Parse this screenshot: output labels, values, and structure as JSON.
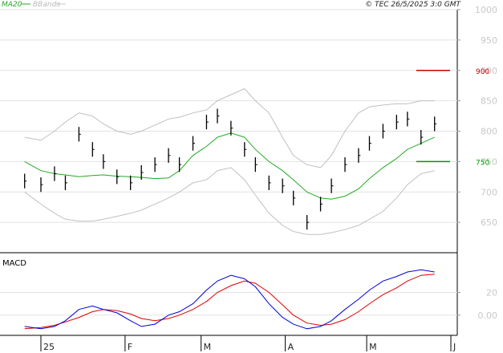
{
  "header": {
    "legend": [
      {
        "label": "MA20",
        "color": "#22aa22"
      },
      {
        "label": "BBands",
        "color": "#c0c0c0"
      }
    ],
    "copyright": "© TEC 26/5/2025 3:0 GMT"
  },
  "chart_data": [
    {
      "type": "line",
      "title": "",
      "ylim": [
        600,
        1000
      ],
      "yticks": [
        650,
        700,
        750,
        800,
        850,
        900,
        950,
        1000
      ],
      "ytick_labels": [
        "650",
        "700",
        "750",
        "800",
        "850",
        "900",
        "950",
        "1000"
      ],
      "grid": true,
      "x": [
        "2024-12-26",
        "2025-01-01",
        "2025-01-06",
        "2025-01-10",
        "2025-01-15",
        "2025-01-20",
        "2025-01-24",
        "2025-01-29",
        "2025-02-03",
        "2025-02-07",
        "2025-02-12",
        "2025-02-17",
        "2025-02-21",
        "2025-02-26",
        "2025-03-03",
        "2025-03-07",
        "2025-03-12",
        "2025-03-17",
        "2025-03-21",
        "2025-03-26",
        "2025-03-31",
        "2025-04-04",
        "2025-04-09",
        "2025-04-14",
        "2025-04-18",
        "2025-04-23",
        "2025-04-28",
        "2025-05-02",
        "2025-05-07",
        "2025-05-12",
        "2025-05-16",
        "2025-05-21",
        "2025-05-26"
      ],
      "series": [
        {
          "name": "Price",
          "color": "#000000",
          "values": [
            718,
            712,
            730,
            715,
            795,
            770,
            750,
            725,
            715,
            732,
            745,
            760,
            745,
            780,
            815,
            825,
            805,
            770,
            745,
            715,
            710,
            690,
            650,
            680,
            710,
            745,
            760,
            780,
            800,
            815,
            820,
            790,
            812
          ]
        },
        {
          "name": "MA20",
          "color": "#22aa22",
          "values": [
            750,
            735,
            730,
            728,
            725,
            727,
            728,
            726,
            725,
            724,
            722,
            723,
            735,
            760,
            775,
            790,
            797,
            790,
            770,
            750,
            735,
            720,
            700,
            690,
            688,
            693,
            705,
            722,
            740,
            755,
            770,
            780,
            790
          ]
        },
        {
          "name": "BBands upper",
          "color": "#c0c0c0",
          "values": [
            790,
            785,
            800,
            815,
            830,
            825,
            812,
            800,
            795,
            800,
            810,
            820,
            823,
            830,
            835,
            850,
            860,
            870,
            850,
            830,
            790,
            760,
            745,
            740,
            760,
            800,
            830,
            840,
            843,
            845,
            845,
            850,
            850
          ]
        },
        {
          "name": "BBands lower",
          "color": "#c0c0c0",
          "values": [
            700,
            680,
            665,
            655,
            652,
            652,
            655,
            660,
            665,
            670,
            680,
            690,
            700,
            715,
            720,
            735,
            740,
            720,
            695,
            665,
            645,
            635,
            630,
            630,
            633,
            638,
            645,
            655,
            668,
            690,
            712,
            730,
            735
          ]
        }
      ],
      "levels": [
        {
          "value": 900,
          "label": "900",
          "color": "#cc0000"
        },
        {
          "value": 750,
          "label": "750",
          "color": "#009900"
        }
      ]
    },
    {
      "type": "line",
      "title": "MACD",
      "ylim": [
        -15,
        50
      ],
      "yticks": [
        0,
        20
      ],
      "ytick_labels": [
        "0.00",
        "20"
      ],
      "grid": true,
      "x": [
        "2024-12-26",
        "2025-01-01",
        "2025-01-06",
        "2025-01-10",
        "2025-01-15",
        "2025-01-20",
        "2025-01-24",
        "2025-01-29",
        "2025-02-03",
        "2025-02-07",
        "2025-02-12",
        "2025-02-17",
        "2025-02-21",
        "2025-02-26",
        "2025-03-03",
        "2025-03-07",
        "2025-03-12",
        "2025-03-17",
        "2025-03-21",
        "2025-03-26",
        "2025-03-31",
        "2025-04-04",
        "2025-04-09",
        "2025-04-14",
        "2025-04-18",
        "2025-04-23",
        "2025-04-28",
        "2025-05-02",
        "2025-05-07",
        "2025-05-12",
        "2025-05-16",
        "2025-05-21",
        "2025-05-26"
      ],
      "series": [
        {
          "name": "MACD",
          "color": "#0000dd",
          "values": [
            -10,
            -12,
            -10,
            -5,
            5,
            8,
            5,
            2,
            -5,
            -10,
            -8,
            0,
            3,
            10,
            22,
            30,
            35,
            32,
            25,
            10,
            -2,
            -8,
            -12,
            -10,
            -5,
            5,
            14,
            22,
            30,
            34,
            38,
            40,
            38
          ]
        },
        {
          "name": "Signal",
          "color": "#dd0000",
          "values": [
            -12,
            -11,
            -9,
            -6,
            -2,
            3,
            5,
            4,
            1,
            -3,
            -5,
            -3,
            0,
            5,
            12,
            20,
            26,
            30,
            28,
            20,
            9,
            0,
            -7,
            -9,
            -8,
            -4,
            3,
            10,
            18,
            24,
            30,
            35,
            36
          ]
        }
      ]
    }
  ],
  "x_axis": {
    "labels": [
      {
        "date": "2025-01-01",
        "label": "25"
      },
      {
        "date": "2025-02-01",
        "label": "F"
      },
      {
        "date": "2025-03-01",
        "label": "M"
      },
      {
        "date": "2025-04-01",
        "label": "A"
      },
      {
        "date": "2025-05-01",
        "label": "M"
      },
      {
        "date": "2025-06-01",
        "label": "J"
      }
    ]
  }
}
